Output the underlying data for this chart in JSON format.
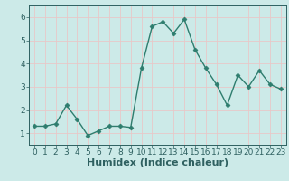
{
  "x": [
    0,
    1,
    2,
    3,
    4,
    5,
    6,
    7,
    8,
    9,
    10,
    11,
    12,
    13,
    14,
    15,
    16,
    17,
    18,
    19,
    20,
    21,
    22,
    23
  ],
  "y": [
    1.3,
    1.3,
    1.4,
    2.2,
    1.6,
    0.9,
    1.1,
    1.3,
    1.3,
    1.25,
    3.8,
    5.6,
    5.8,
    5.3,
    5.9,
    4.6,
    3.8,
    3.1,
    2.2,
    3.5,
    3.0,
    3.7,
    3.1,
    2.9
  ],
  "line_color": "#2e7d6e",
  "marker": "D",
  "marker_size": 2.5,
  "line_width": 1.0,
  "xlabel": "Humidex (Indice chaleur)",
  "xlabel_fontsize": 8,
  "xlim": [
    -0.5,
    23.5
  ],
  "ylim": [
    0.5,
    6.5
  ],
  "yticks": [
    1,
    2,
    3,
    4,
    5,
    6
  ],
  "xticks": [
    0,
    1,
    2,
    3,
    4,
    5,
    6,
    7,
    8,
    9,
    10,
    11,
    12,
    13,
    14,
    15,
    16,
    17,
    18,
    19,
    20,
    21,
    22,
    23
  ],
  "bg_color": "#cceae8",
  "grid_color": "#e8c8c8",
  "tick_fontsize": 6.5,
  "text_color": "#2e6060",
  "spine_color": "#2e6060"
}
